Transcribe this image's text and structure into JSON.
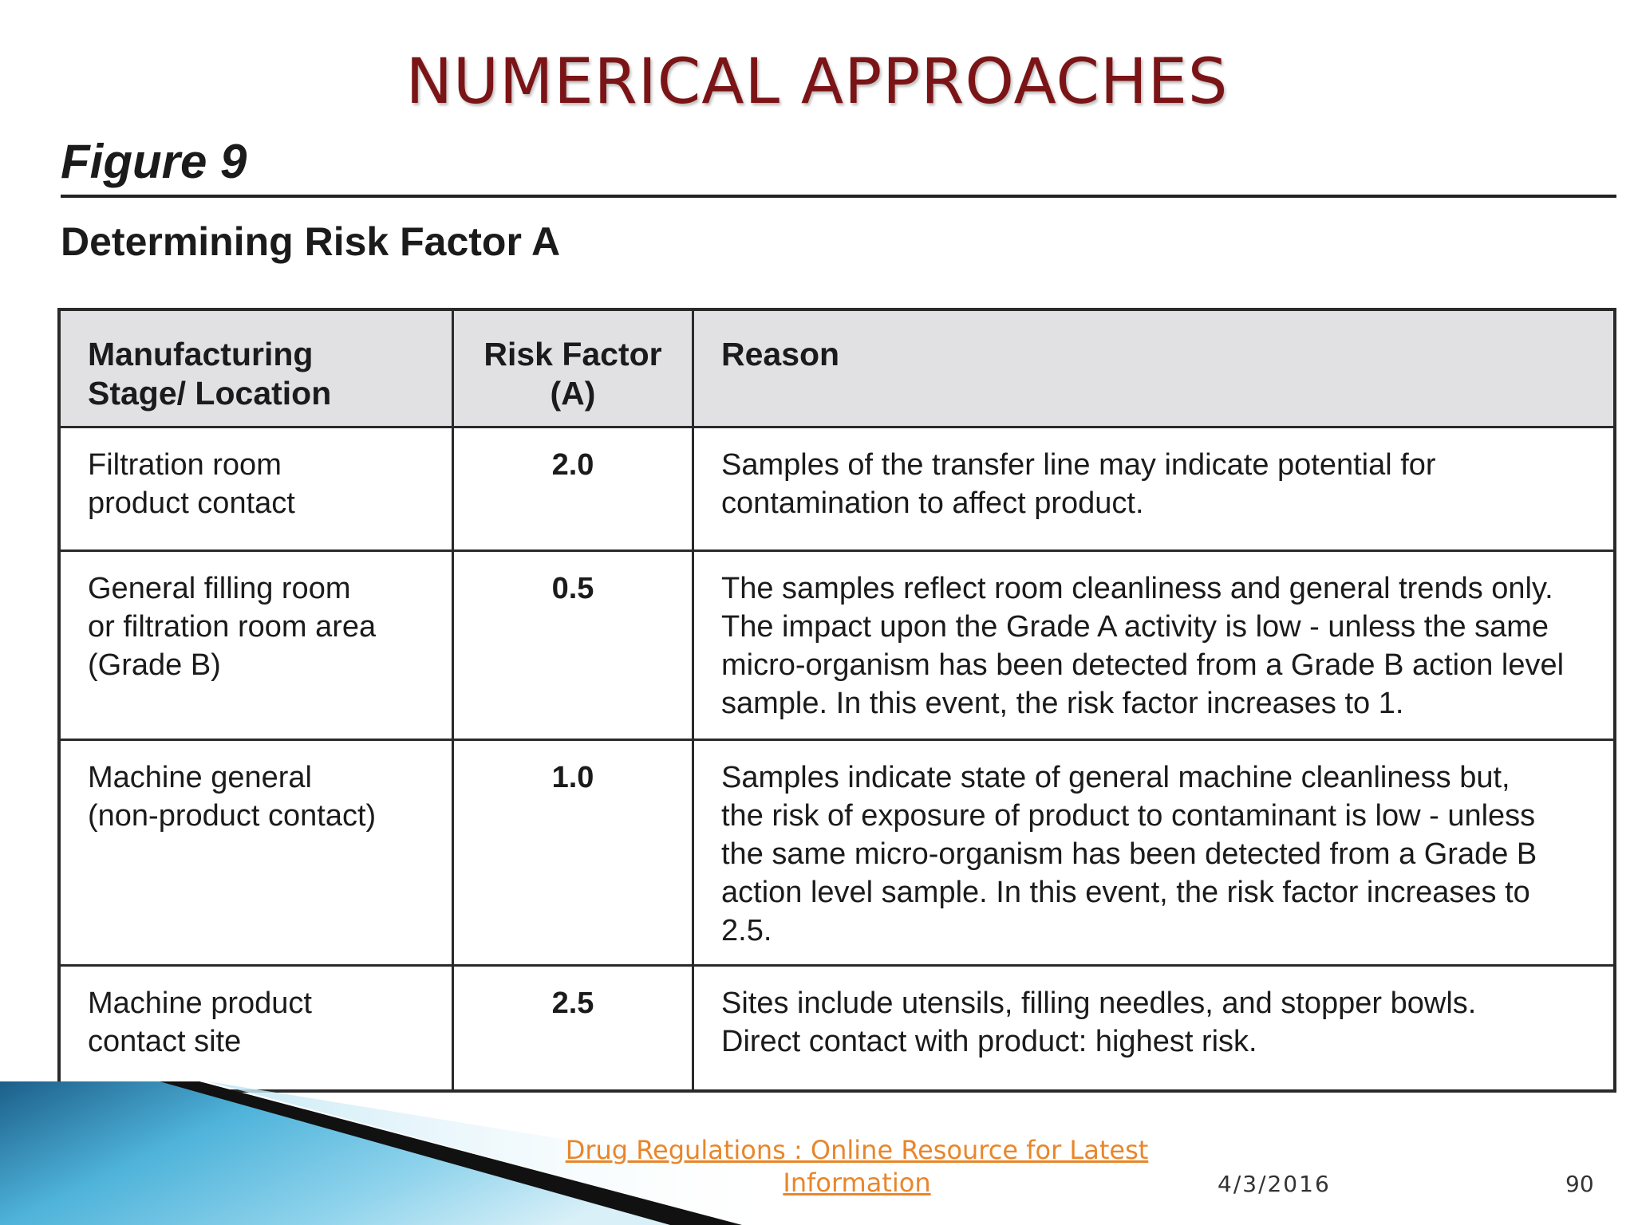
{
  "slide": {
    "title": "NUMERICAL APPROACHES"
  },
  "figure": {
    "label": "Figure 9",
    "subtitle": "Determining Risk Factor A"
  },
  "table": {
    "headers": {
      "stage": "Manufacturing\nStage/ Location",
      "factor": "Risk Factor\n(A)",
      "reason": "Reason"
    },
    "rows": [
      {
        "stage": "Filtration room\nproduct contact",
        "factor": "2.0",
        "reason": "Samples of the transfer line may indicate potential for\ncontamination to affect product."
      },
      {
        "stage": "General filling room\nor filtration room area\n(Grade B)",
        "factor": "0.5",
        "reason": "The samples reflect room cleanliness and general trends only.\nThe impact upon the Grade A activity is low - unless the same\nmicro-organism has been detected from a Grade B action level\nsample. In this event, the risk factor increases to 1."
      },
      {
        "stage": "Machine general\n(non-product contact)",
        "factor": "1.0",
        "reason": "Samples indicate state of general machine cleanliness but,\nthe risk of exposure of product to contaminant is low - unless\nthe same micro-organism has been detected from a Grade B\naction level sample. In this event, the risk factor increases to 2.5."
      },
      {
        "stage": "Machine product\ncontact site",
        "factor": "2.5",
        "reason": "Sites include utensils, filling needles, and stopper bowls.\nDirect contact with product: highest risk."
      }
    ]
  },
  "footer": {
    "link_text": "Drug Regulations : Online Resource for Latest Information",
    "date": "4/3/2016",
    "page_number": "90",
    "link_color": "#e8862b"
  }
}
